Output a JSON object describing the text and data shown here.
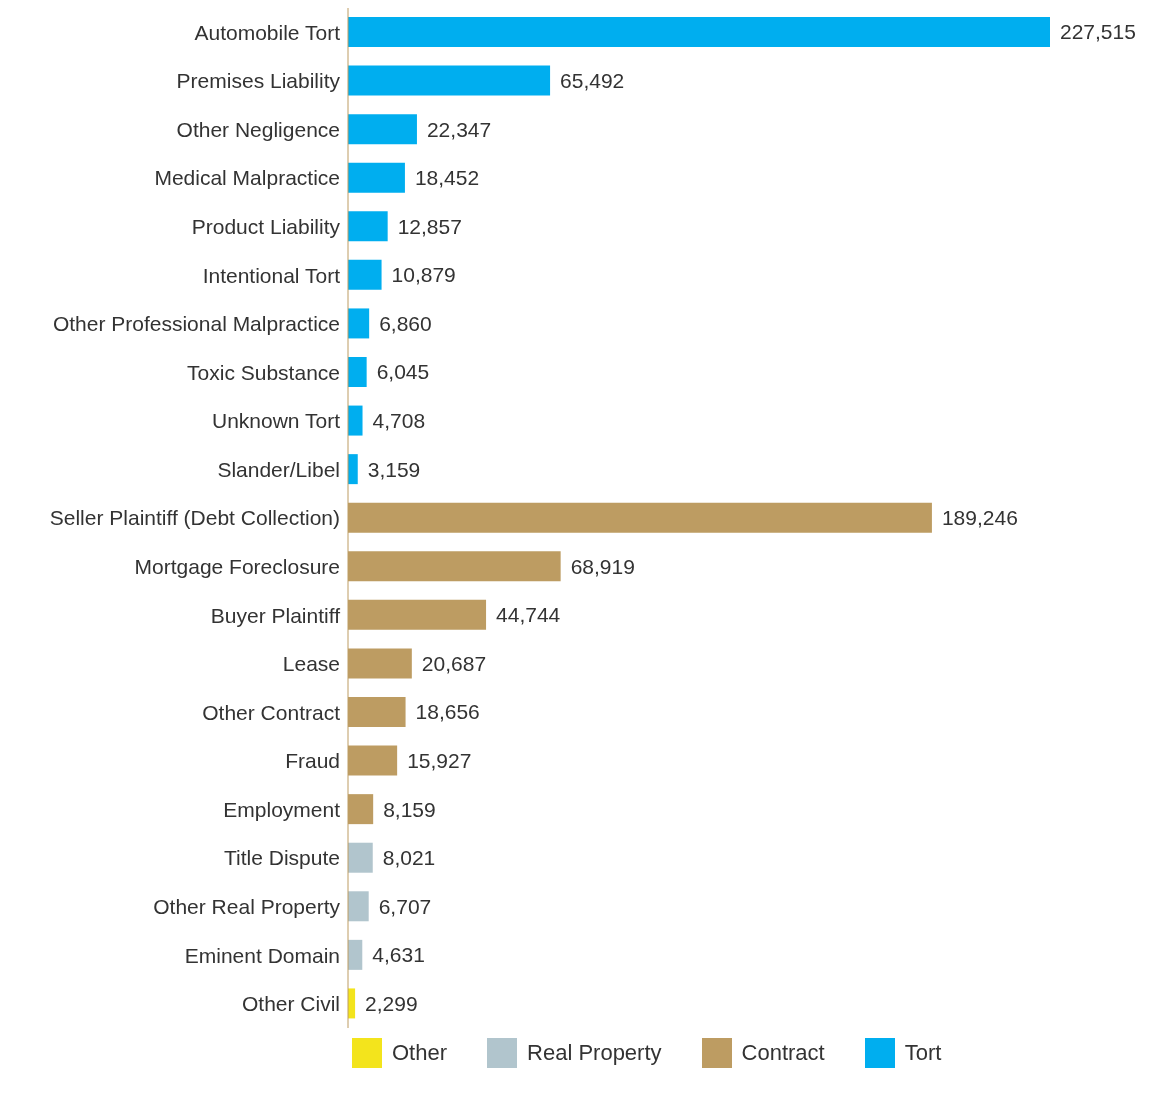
{
  "chart_data": {
    "type": "bar",
    "orientation": "horizontal",
    "stacked": true,
    "legend": "bottom",
    "categories": [
      "Automobile Tort",
      "Premises Liability",
      "Other Negligence",
      "Medical Malpractice",
      "Product Liability",
      "Intentional Tort",
      "Other Professional Malpractice",
      "Toxic Substance",
      "Unknown Tort",
      "Slander/Libel",
      "Seller Plaintiff (Debt Collection)",
      "Mortgage Foreclosure",
      "Buyer Plaintiff",
      "Lease",
      "Other Contract",
      "Fraud",
      "Employment",
      "Title Dispute",
      "Other Real Property",
      "Eminent Domain",
      "Other Civil"
    ],
    "series": [
      {
        "name": "Other",
        "color": "#f3e41c",
        "values": [
          null,
          null,
          null,
          null,
          null,
          null,
          null,
          null,
          null,
          null,
          null,
          null,
          null,
          null,
          null,
          null,
          null,
          null,
          null,
          null,
          2299
        ],
        "value_labels": [
          null,
          null,
          null,
          null,
          null,
          null,
          null,
          null,
          null,
          null,
          null,
          null,
          null,
          null,
          null,
          null,
          null,
          null,
          null,
          null,
          "2,299"
        ]
      },
      {
        "name": "Real Property",
        "color": "#b1c5cd",
        "values": [
          null,
          null,
          null,
          null,
          null,
          null,
          null,
          null,
          null,
          null,
          null,
          null,
          null,
          null,
          null,
          null,
          null,
          8021,
          6707,
          4631,
          null
        ],
        "value_labels": [
          null,
          null,
          null,
          null,
          null,
          null,
          null,
          null,
          null,
          null,
          null,
          null,
          null,
          null,
          null,
          null,
          null,
          "8,021",
          "6,707",
          "4,631",
          null
        ]
      },
      {
        "name": "Contract",
        "color": "#bd9c62",
        "values": [
          null,
          null,
          null,
          null,
          null,
          null,
          null,
          null,
          null,
          null,
          189246,
          68919,
          44744,
          20687,
          18656,
          15927,
          8159,
          null,
          null,
          null,
          null
        ],
        "value_labels": [
          null,
          null,
          null,
          null,
          null,
          null,
          null,
          null,
          null,
          null,
          "189,246",
          "68,919",
          "44,744",
          "20,687",
          "18,656",
          "15,927",
          "8,159",
          null,
          null,
          null,
          null
        ]
      },
      {
        "name": "Tort",
        "color": "#00aeef",
        "values": [
          227515,
          65492,
          22347,
          18452,
          12857,
          10879,
          6860,
          6045,
          4708,
          3159,
          null,
          null,
          null,
          null,
          null,
          null,
          null,
          null,
          null,
          null,
          null
        ],
        "value_labels": [
          "227,515",
          "65,492",
          "22,347",
          "18,452",
          "12,857",
          "10,879",
          "6,860",
          "6,045",
          "4,708",
          "3,159",
          null,
          null,
          null,
          null,
          null,
          null,
          null,
          null,
          null,
          null,
          null
        ]
      }
    ]
  }
}
